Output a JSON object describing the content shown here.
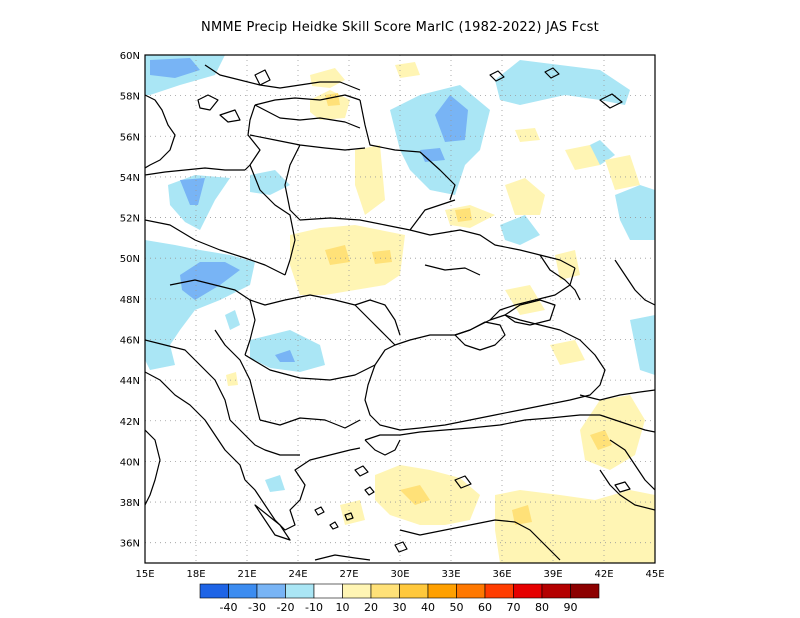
{
  "title": "NMME Precip Heidke Skill Score MarIC (1982-2022) JAS Fcst",
  "map": {
    "lon_range": [
      15,
      45
    ],
    "lat_range": [
      35,
      60
    ],
    "x_ticks": [
      "15E",
      "18E",
      "21E",
      "24E",
      "27E",
      "30E",
      "33E",
      "36E",
      "39E",
      "42E",
      "45E"
    ],
    "y_ticks": [
      "36N",
      "38N",
      "40N",
      "42N",
      "44N",
      "46N",
      "48N",
      "50N",
      "52N",
      "54N",
      "56N",
      "58N",
      "60N"
    ],
    "grid": "dotted"
  },
  "colorbar": {
    "labels": [
      "-40",
      "-30",
      "-20",
      "-10",
      "10",
      "20",
      "30",
      "40",
      "50",
      "60",
      "70",
      "80",
      "90"
    ],
    "colors": [
      "#1e64e6",
      "#3c8cf0",
      "#78b4f5",
      "#aae6f5",
      "#ffffff",
      "#fff5b4",
      "#ffe178",
      "#ffc83c",
      "#ffa000",
      "#ff7800",
      "#ff3c00",
      "#e60000",
      "#b40000",
      "#8c0000"
    ]
  }
}
